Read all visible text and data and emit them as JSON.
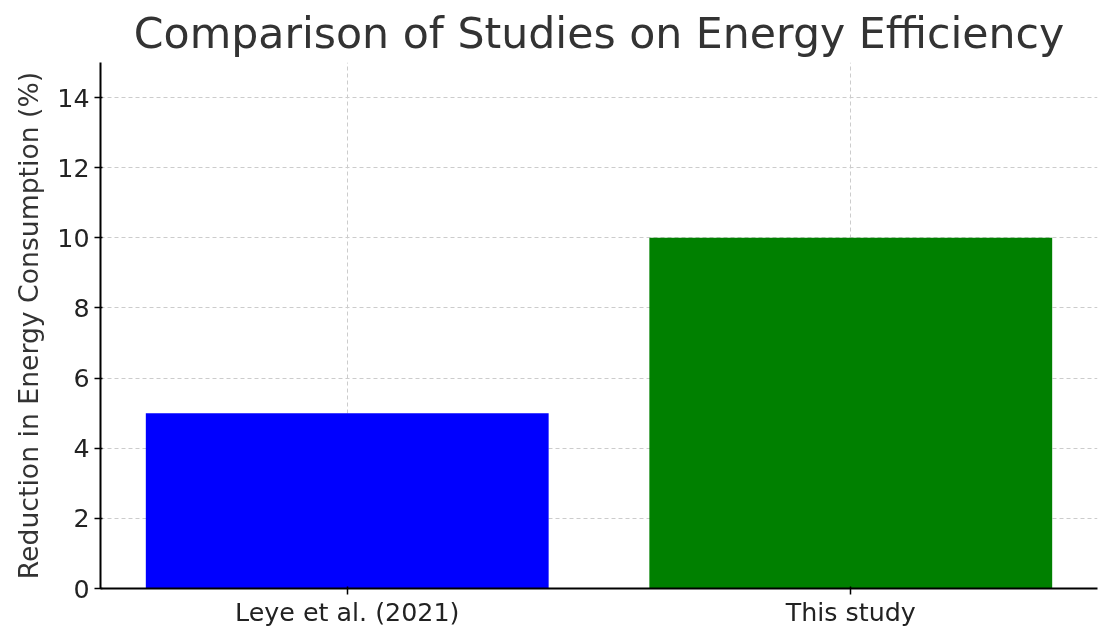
{
  "chart_data": {
    "type": "bar",
    "title": "Comparison of Studies on Energy Efficiency",
    "ylabel": "Reduction in Energy Consumption (%)",
    "categories": [
      "Leye et al. (2021)",
      "This study"
    ],
    "values": [
      5,
      10
    ],
    "colors": [
      "#0000ff",
      "#008000"
    ],
    "ylim": [
      0,
      15
    ],
    "yticks": [
      0,
      2,
      4,
      6,
      8,
      10,
      12,
      14
    ],
    "grid": true
  }
}
